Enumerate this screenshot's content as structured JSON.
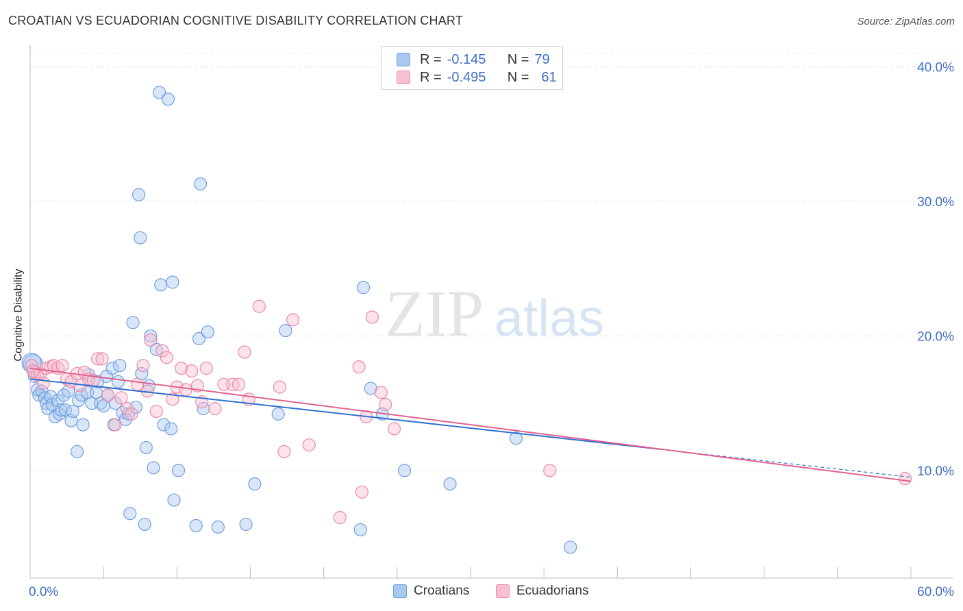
{
  "title": "CROATIAN VS ECUADORIAN COGNITIVE DISABILITY CORRELATION CHART",
  "source": "Source: ZipAtlas.com",
  "watermark": {
    "zip": "ZIP",
    "atlas": "atlas"
  },
  "legend": {
    "rows": [
      {
        "r_label": "R =",
        "r_value": "-0.145",
        "n_label": "N =",
        "n_value": "79",
        "color": "#a8c8f0",
        "border": "#6f9fe0"
      },
      {
        "r_label": "R =",
        "r_value": "-0.495",
        "n_label": "N =",
        "n_value": "61",
        "color": "#f8bfd0",
        "border": "#e98aa8"
      }
    ]
  },
  "bottom_legend": [
    {
      "label": "Croatians",
      "color": "#a8c8f0",
      "border": "#6f9fe0"
    },
    {
      "label": "Ecuadorians",
      "color": "#f8bfd0",
      "border": "#e98aa8"
    }
  ],
  "chart_data": {
    "type": "scatter",
    "ylabel": "Cognitive Disability",
    "xlim": [
      0,
      60
    ],
    "ylim": [
      2,
      41
    ],
    "x_tick_labels": [
      {
        "value": 0,
        "label": "0.0%"
      },
      {
        "value": 60,
        "label": "60.0%"
      }
    ],
    "y_tick_labels": [
      {
        "value": 10,
        "label": "10.0%"
      },
      {
        "value": 20,
        "label": "20.0%"
      },
      {
        "value": 30,
        "label": "30.0%"
      },
      {
        "value": 40,
        "label": "40.0%"
      }
    ],
    "grid": true,
    "series": [
      {
        "name": "Croatians",
        "color": "#6f9fe0",
        "fill": "#a8c8f0",
        "trend": {
          "x0": 0,
          "y0": 16.8,
          "x1": 60,
          "y1": 9.5,
          "solid_until": 43,
          "color": "#2f6fd0"
        },
        "points": [
          [
            0.2,
            17.9
          ],
          [
            0.3,
            17.0
          ],
          [
            0.5,
            16.0
          ],
          [
            0.6,
            15.6
          ],
          [
            0.8,
            15.9
          ],
          [
            1.0,
            15.4
          ],
          [
            1.1,
            15.0
          ],
          [
            1.2,
            14.6
          ],
          [
            1.4,
            15.5
          ],
          [
            1.5,
            14.9
          ],
          [
            1.7,
            14.0
          ],
          [
            1.9,
            15.2
          ],
          [
            2.0,
            14.2
          ],
          [
            2.1,
            14.5
          ],
          [
            2.3,
            15.6
          ],
          [
            2.4,
            14.5
          ],
          [
            2.6,
            15.9
          ],
          [
            2.8,
            13.7
          ],
          [
            2.9,
            14.4
          ],
          [
            3.2,
            11.4
          ],
          [
            3.3,
            15.2
          ],
          [
            3.5,
            15.6
          ],
          [
            3.6,
            13.4
          ],
          [
            3.9,
            15.8
          ],
          [
            4.0,
            17.1
          ],
          [
            4.2,
            15.0
          ],
          [
            4.5,
            15.8
          ],
          [
            4.6,
            16.6
          ],
          [
            4.8,
            15.0
          ],
          [
            5.0,
            14.8
          ],
          [
            5.2,
            17.0
          ],
          [
            5.3,
            15.6
          ],
          [
            5.6,
            17.6
          ],
          [
            5.7,
            13.4
          ],
          [
            5.8,
            15.0
          ],
          [
            6.0,
            16.6
          ],
          [
            6.1,
            17.8
          ],
          [
            6.3,
            14.3
          ],
          [
            6.5,
            13.8
          ],
          [
            6.7,
            14.2
          ],
          [
            6.8,
            6.8
          ],
          [
            7.0,
            21.0
          ],
          [
            7.2,
            14.7
          ],
          [
            7.4,
            30.5
          ],
          [
            7.5,
            27.3
          ],
          [
            7.6,
            17.2
          ],
          [
            7.8,
            6.0
          ],
          [
            7.9,
            11.7
          ],
          [
            8.1,
            16.3
          ],
          [
            8.2,
            20.0
          ],
          [
            8.4,
            10.2
          ],
          [
            8.6,
            19.0
          ],
          [
            8.8,
            38.1
          ],
          [
            8.9,
            23.8
          ],
          [
            9.1,
            13.4
          ],
          [
            9.4,
            37.6
          ],
          [
            9.6,
            13.1
          ],
          [
            9.7,
            24.0
          ],
          [
            9.8,
            7.8
          ],
          [
            10.1,
            10.0
          ],
          [
            11.3,
            5.9
          ],
          [
            11.5,
            19.8
          ],
          [
            11.6,
            31.3
          ],
          [
            11.8,
            14.6
          ],
          [
            12.1,
            20.3
          ],
          [
            12.8,
            5.8
          ],
          [
            14.7,
            6.0
          ],
          [
            15.3,
            9.0
          ],
          [
            16.9,
            14.2
          ],
          [
            17.4,
            20.4
          ],
          [
            22.5,
            5.6
          ],
          [
            22.7,
            23.6
          ],
          [
            23.2,
            16.1
          ],
          [
            24.0,
            14.2
          ],
          [
            25.5,
            10.0
          ],
          [
            28.6,
            9.0
          ],
          [
            33.1,
            12.4
          ],
          [
            36.8,
            4.3
          ],
          [
            0.1,
            18.0
          ]
        ]
      },
      {
        "name": "Ecuadorians",
        "color": "#e98aa8",
        "fill": "#f8bfd0",
        "trend": {
          "x0": 0,
          "y0": 17.6,
          "x1": 60,
          "y1": 9.2,
          "solid_until": 60,
          "color": "#e0608f"
        },
        "points": [
          [
            0.1,
            17.8
          ],
          [
            0.3,
            17.3
          ],
          [
            0.5,
            17.1
          ],
          [
            0.7,
            17.2
          ],
          [
            0.9,
            16.5
          ],
          [
            1.1,
            17.6
          ],
          [
            1.4,
            17.7
          ],
          [
            1.6,
            17.8
          ],
          [
            1.9,
            17.6
          ],
          [
            2.2,
            17.8
          ],
          [
            2.5,
            16.8
          ],
          [
            2.8,
            16.6
          ],
          [
            3.2,
            17.2
          ],
          [
            3.4,
            16.3
          ],
          [
            3.7,
            17.3
          ],
          [
            4.0,
            16.8
          ],
          [
            4.3,
            16.7
          ],
          [
            4.6,
            18.3
          ],
          [
            4.9,
            18.3
          ],
          [
            5.3,
            15.6
          ],
          [
            5.8,
            13.4
          ],
          [
            6.2,
            15.4
          ],
          [
            6.6,
            14.6
          ],
          [
            6.9,
            14.2
          ],
          [
            7.3,
            16.4
          ],
          [
            7.7,
            17.8
          ],
          [
            8.0,
            15.9
          ],
          [
            8.2,
            19.7
          ],
          [
            8.6,
            14.4
          ],
          [
            9.0,
            18.9
          ],
          [
            9.3,
            18.4
          ],
          [
            9.7,
            15.3
          ],
          [
            10.0,
            16.2
          ],
          [
            10.3,
            17.6
          ],
          [
            10.6,
            16.0
          ],
          [
            11.0,
            17.4
          ],
          [
            11.4,
            16.3
          ],
          [
            11.7,
            15.1
          ],
          [
            12.0,
            17.6
          ],
          [
            12.6,
            14.6
          ],
          [
            13.2,
            16.4
          ],
          [
            13.8,
            16.4
          ],
          [
            14.2,
            16.4
          ],
          [
            14.6,
            18.8
          ],
          [
            14.9,
            15.3
          ],
          [
            15.6,
            22.2
          ],
          [
            17.0,
            16.2
          ],
          [
            17.3,
            11.4
          ],
          [
            17.9,
            21.2
          ],
          [
            19.0,
            11.9
          ],
          [
            21.1,
            6.5
          ],
          [
            22.4,
            17.7
          ],
          [
            22.6,
            8.4
          ],
          [
            22.9,
            14.0
          ],
          [
            23.3,
            21.4
          ],
          [
            23.9,
            15.8
          ],
          [
            24.2,
            14.9
          ],
          [
            24.8,
            13.1
          ],
          [
            35.4,
            10.0
          ],
          [
            59.6,
            9.4
          ],
          [
            0.2,
            17.4
          ]
        ]
      }
    ]
  }
}
